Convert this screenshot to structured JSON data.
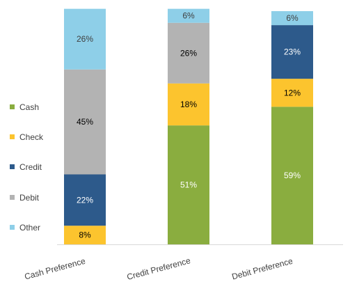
{
  "chart_data": {
    "type": "bar",
    "stacked": true,
    "stacked_percent": true,
    "categories": [
      "Cash Preference",
      "Credit Preference",
      "Debit Preference"
    ],
    "series": [
      {
        "name": "Cash",
        "color": "#8aad3f",
        "label_color": "#ffffff",
        "values": [
          0,
          51,
          59
        ]
      },
      {
        "name": "Check",
        "color": "#fcc42e",
        "label_color": "#000000",
        "values": [
          8,
          18,
          12
        ]
      },
      {
        "name": "Credit",
        "color": "#2d5a8b",
        "label_color": "#ffffff",
        "values": [
          22,
          0,
          23
        ]
      },
      {
        "name": "Debit",
        "color": "#b3b3b3",
        "label_color": "#000000",
        "values": [
          45,
          26,
          0
        ]
      },
      {
        "name": "Other",
        "color": "#8ecfe8",
        "label_color": "#404040",
        "values": [
          26,
          6,
          6
        ]
      }
    ],
    "value_suffix": "%",
    "ylim": [
      0,
      100
    ],
    "grid": false,
    "legend": "left",
    "title": "",
    "xlabel": "",
    "ylabel": "",
    "tick_label_rotation_deg": -15
  }
}
